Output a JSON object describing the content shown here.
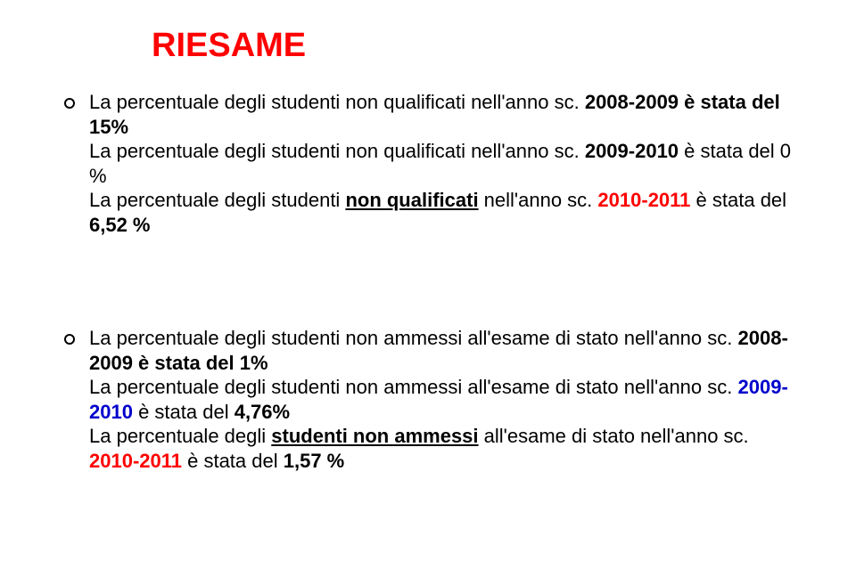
{
  "colors": {
    "title": "#ff0000",
    "text": "#000000",
    "accent_blue": "#0000cc",
    "background": "#ffffff",
    "bullet_border": "#000000"
  },
  "typography": {
    "title_fontsize": 38,
    "body_fontsize": 22,
    "font_family": "Verdana"
  },
  "title": "RIESAME",
  "block1": {
    "l1_pre": "La percentuale degli studenti non qualificati nell'anno sc.",
    "l1_year": "2008-2009 è stata del 15%",
    "l2_pre": "La percentuale degli studenti non qualificati nell'anno sc.",
    "l2_year": "2009-2010",
    "l2_rest": " è stata del 0   %",
    "l3_pre": "La percentuale degli studenti ",
    "l3_uq": "non qualificati",
    "l3_post": " nell'anno sc.",
    "l3_year": "2010-2011",
    "l3_rest": " è stata del ",
    "l3_pct": "6,52 %"
  },
  "block2": {
    "l1_pre": " La percentuale degli studenti non ammessi all'esame di stato nell'anno sc. ",
    "l1_year": "2008-2009 è stata del 1%",
    "l2_pre": "La percentuale degli studenti non ammessi all'esame di stato nell'anno sc. ",
    "l2_year": "2009-2010",
    "l2_rest": " è stata del ",
    "l2_pct": "4,76%",
    "l3_pre": "La percentuale degli ",
    "l3_uq": "studenti non ammessi",
    "l3_post": " all'esame di stato nell'anno sc. ",
    "l3_year": "2010-2011",
    "l3_rest": " è stata del ",
    "l3_pct": "1,57 %"
  }
}
